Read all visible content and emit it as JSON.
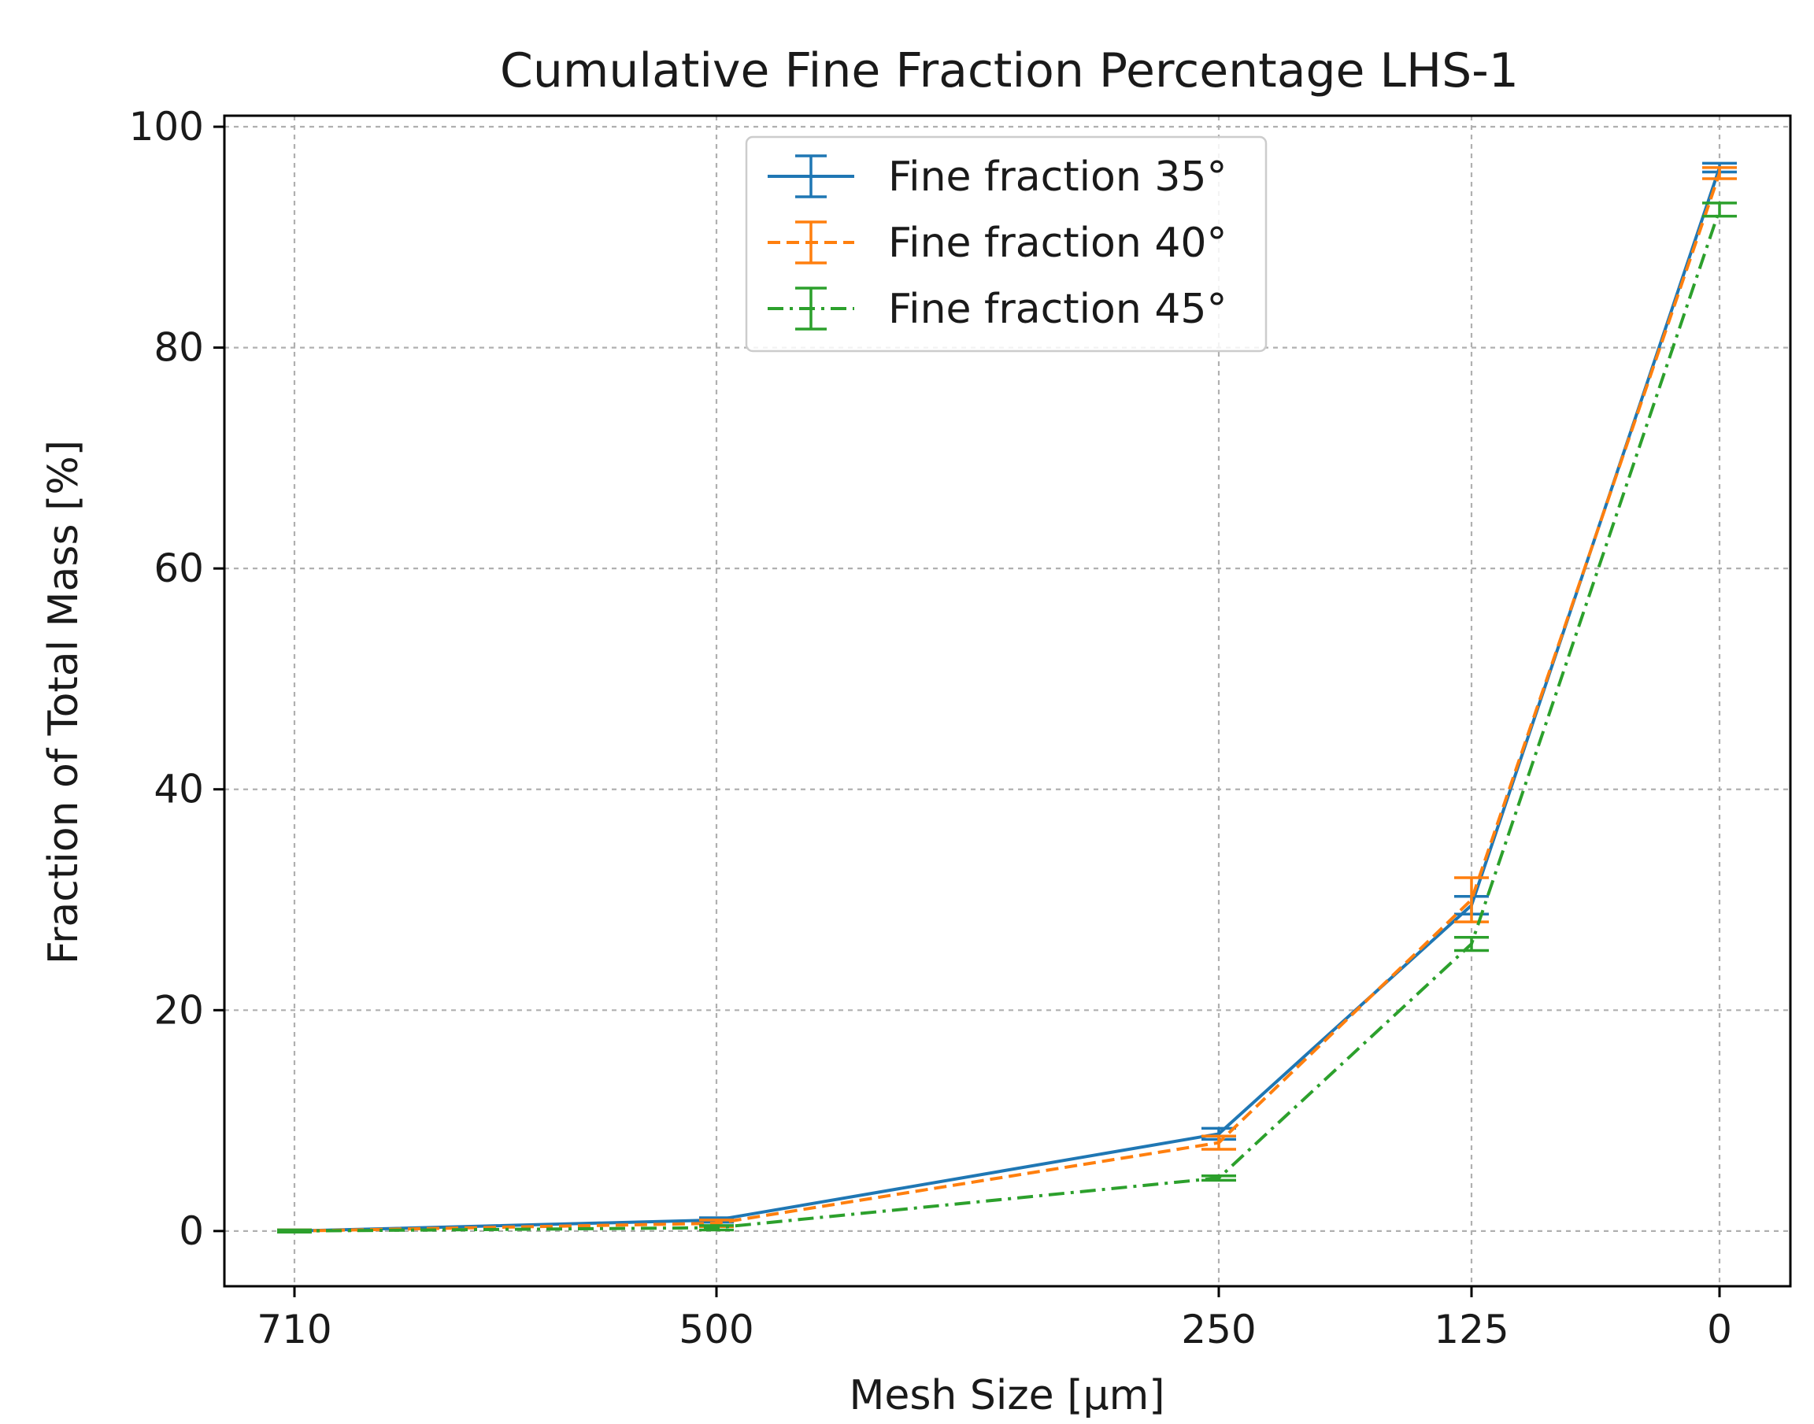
{
  "chart_data": {
    "type": "line",
    "title": "Cumulative Fine Fraction Percentage LHS-1",
    "xlabel": "Mesh Size [µm]",
    "ylabel": "Fraction of Total Mass [%]",
    "categories": [
      "710",
      "500",
      "250",
      "125",
      "0"
    ],
    "ylim": [
      -5,
      101
    ],
    "yticks": [
      0,
      20,
      40,
      60,
      80,
      100
    ],
    "grid": true,
    "legend_position": "top-center",
    "series": [
      {
        "name": "Fine fraction 35°",
        "color": "#1f77b4",
        "linestyle": "solid",
        "values": [
          0.0,
          1.0,
          8.8,
          29.5,
          96.3
        ],
        "errors": [
          0.1,
          0.2,
          0.5,
          0.8,
          0.4
        ]
      },
      {
        "name": "Fine fraction 40°",
        "color": "#ff7f0e",
        "linestyle": "dashed",
        "values": [
          0.0,
          0.7,
          8.0,
          30.0,
          95.8
        ],
        "errors": [
          0.1,
          0.3,
          0.6,
          2.0,
          0.5
        ]
      },
      {
        "name": "Fine fraction 45°",
        "color": "#2ca02c",
        "linestyle": "dashdot",
        "values": [
          0.0,
          0.3,
          4.8,
          26.0,
          92.5
        ],
        "errors": [
          0.1,
          0.2,
          0.2,
          0.6,
          0.6
        ]
      }
    ]
  }
}
